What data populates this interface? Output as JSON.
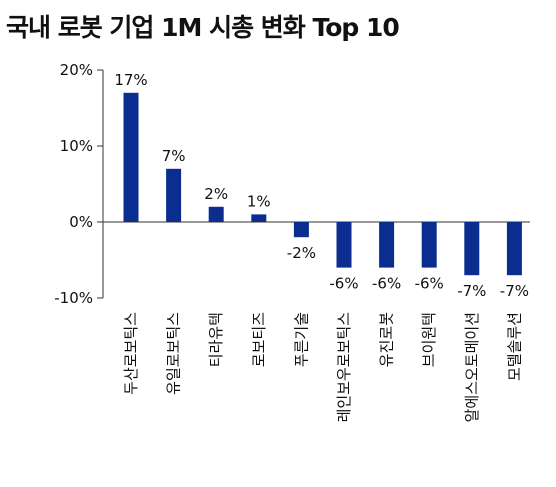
{
  "chart_data": {
    "type": "bar",
    "title": "국내 로봇 기업 1M 시총 변화 Top 10",
    "categories": [
      "두산로보틱스",
      "유일로보틱스",
      "티라유텍",
      "로보티즈",
      "푸른기술",
      "레인보우로보틱스",
      "유진로봇",
      "브이원텍",
      "알에스오토메이션",
      "모델솔루션"
    ],
    "values": [
      17,
      7,
      2,
      1,
      -2,
      -6,
      -6,
      -6,
      -7,
      -7
    ],
    "data_labels": [
      "17%",
      "7%",
      "2%",
      "1%",
      "-2%",
      "-6%",
      "-6%",
      "-6%",
      "-7%",
      "-7%"
    ],
    "y_ticks": [
      20,
      10,
      0,
      -10
    ],
    "y_tick_labels": [
      "20%",
      "10%",
      "0%",
      "-10%"
    ],
    "ylim": [
      -10,
      20
    ],
    "xlabel": "",
    "ylabel": "",
    "grid": false,
    "bar_color": "#0a2d8f"
  }
}
